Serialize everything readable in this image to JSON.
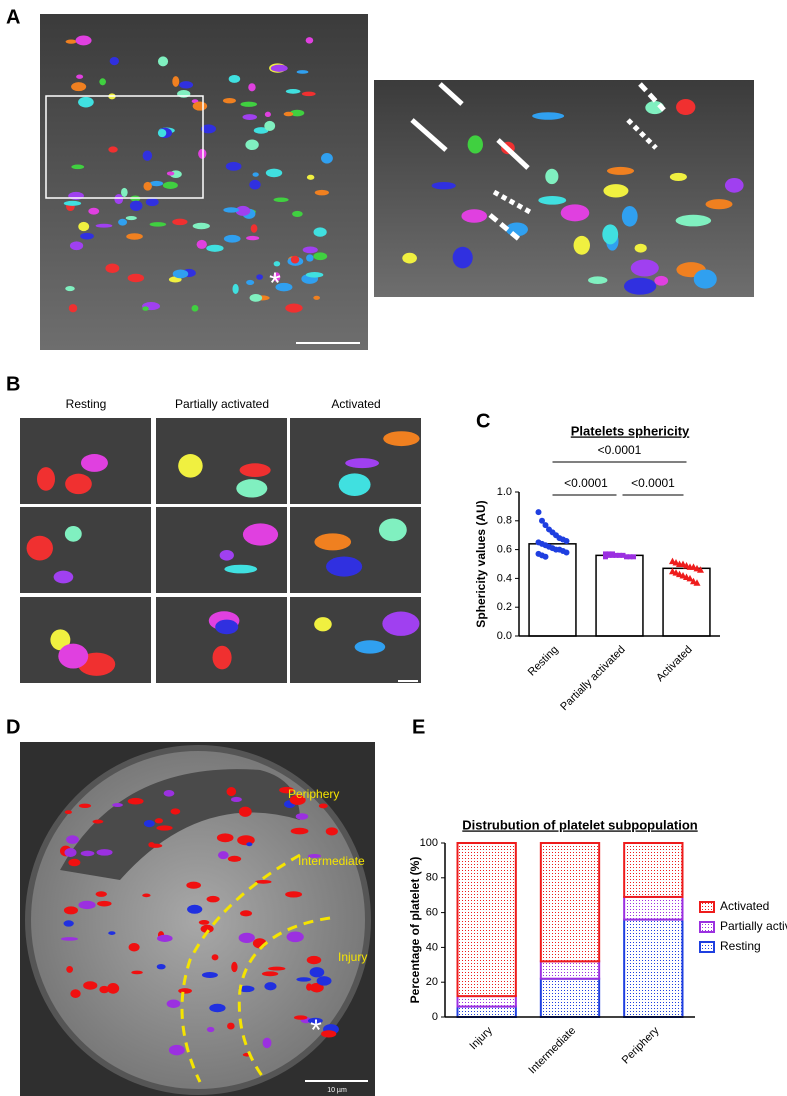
{
  "figure": {
    "panel_labels": [
      "A",
      "B",
      "C",
      "D",
      "E"
    ],
    "asterisk": "*",
    "b_columns": [
      "Resting",
      "Partially activated",
      "Activated"
    ],
    "d_labels": {
      "periphery": "Periphery",
      "intermediate": "Intermediate",
      "injury": "Injury",
      "scale": "10 µm"
    }
  },
  "chart_data": [
    {
      "type": "bar_scatter",
      "title": "Platelets sphericity",
      "y_label": "Sphericity values (AU)",
      "categories": [
        "Resting",
        "Partially activated",
        "Activated"
      ],
      "values": [
        0.64,
        0.56,
        0.47
      ],
      "points": [
        [
          0.86,
          0.8,
          0.77,
          0.74,
          0.72,
          0.7,
          0.68,
          0.67,
          0.66,
          0.65,
          0.64,
          0.63,
          0.62,
          0.61,
          0.6,
          0.6,
          0.59,
          0.58,
          0.57,
          0.56,
          0.55
        ],
        [
          0.57,
          0.57,
          0.56,
          0.56,
          0.56,
          0.56,
          0.55,
          0.55,
          0.55,
          0.55,
          0.56,
          0.57
        ],
        [
          0.52,
          0.51,
          0.5,
          0.5,
          0.49,
          0.48,
          0.48,
          0.47,
          0.46,
          0.45,
          0.44,
          0.43,
          0.42,
          0.41,
          0.4,
          0.38,
          0.37
        ]
      ],
      "point_colors": [
        "#1f3fe0",
        "#9b30e0",
        "#ee1c1c"
      ],
      "markers": [
        "circle",
        "square",
        "triangle"
      ],
      "comparisons": [
        {
          "from": "Resting",
          "to": "Partially activated",
          "text": "<0.0001"
        },
        {
          "from": "Partially activated",
          "to": "Activated",
          "text": "<0.0001"
        },
        {
          "from": "Resting",
          "to": "Activated",
          "text": "<0.0001"
        }
      ],
      "ylim": [
        0,
        1
      ],
      "yticks": [
        {
          "value": 0,
          "label": "0.0"
        },
        {
          "value": 0.2,
          "label": "0.2"
        },
        {
          "value": 0.4,
          "label": "0.4"
        },
        {
          "value": 0.6,
          "label": "0.6"
        },
        {
          "value": 0.8,
          "label": "0.8"
        },
        {
          "value": 1,
          "label": "1.0"
        }
      ]
    },
    {
      "type": "stacked_bar",
      "title": "Distrubution of platelet subpopulation",
      "y_label": "Percentage of platelet (%)",
      "categories": [
        "Injury",
        "Intermediate",
        "Periphery"
      ],
      "series": [
        {
          "name": "Resting",
          "color": "#1f3fe0",
          "values": [
            6,
            22,
            56
          ]
        },
        {
          "name": "Partially activated",
          "color": "#9b30e0",
          "values": [
            6,
            10,
            13
          ]
        },
        {
          "name": "Activated",
          "color": "#ee1c1c",
          "values": [
            88,
            68,
            31
          ]
        }
      ],
      "legend": "right",
      "ylim": [
        0,
        100
      ],
      "yticks": [
        0,
        20,
        40,
        60,
        80,
        100
      ]
    }
  ]
}
